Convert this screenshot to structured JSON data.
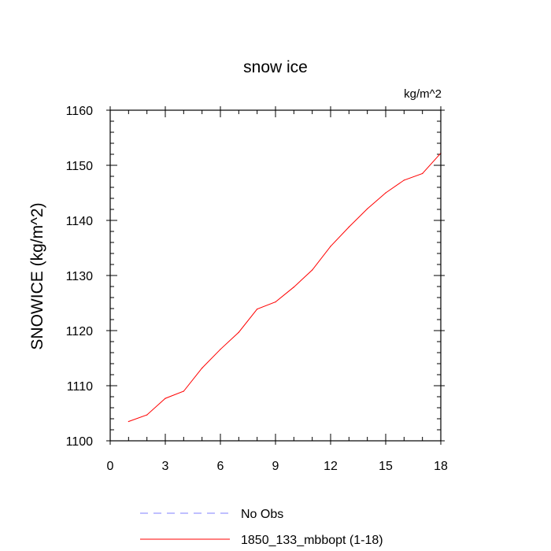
{
  "chart_data": {
    "type": "line",
    "title": "snow ice",
    "units_label": "kg/m^2",
    "ylabel": "SNOWICE  (kg/m^2)",
    "xlabel": "",
    "xlim": [
      0,
      18
    ],
    "ylim": [
      1100,
      1160
    ],
    "xticks": [
      0,
      3,
      6,
      9,
      12,
      15,
      18
    ],
    "yticks": [
      1100,
      1110,
      1120,
      1130,
      1140,
      1150,
      1160
    ],
    "grid": false,
    "legend_position": "bottom",
    "x": [
      1,
      2,
      3,
      4,
      5,
      6,
      7,
      8,
      9,
      10,
      11,
      12,
      13,
      14,
      15,
      16,
      17,
      18
    ],
    "series": [
      {
        "name": "1850_133_mbbopt (1-18)",
        "color": "#ff0000",
        "style": "solid",
        "values": [
          1103.5,
          1104.7,
          1107.7,
          1109.0,
          1113.2,
          1116.6,
          1119.7,
          1123.9,
          1125.2,
          1127.9,
          1131.0,
          1135.3,
          1138.8,
          1142.1,
          1145.0,
          1147.3,
          1148.5,
          1152.2
        ]
      }
    ],
    "legend": [
      {
        "label": "No Obs",
        "color": "#8080ff",
        "style": "dashed"
      },
      {
        "label": "1850_133_mbbopt (1-18)",
        "color": "#ff0000",
        "style": "solid"
      }
    ]
  }
}
